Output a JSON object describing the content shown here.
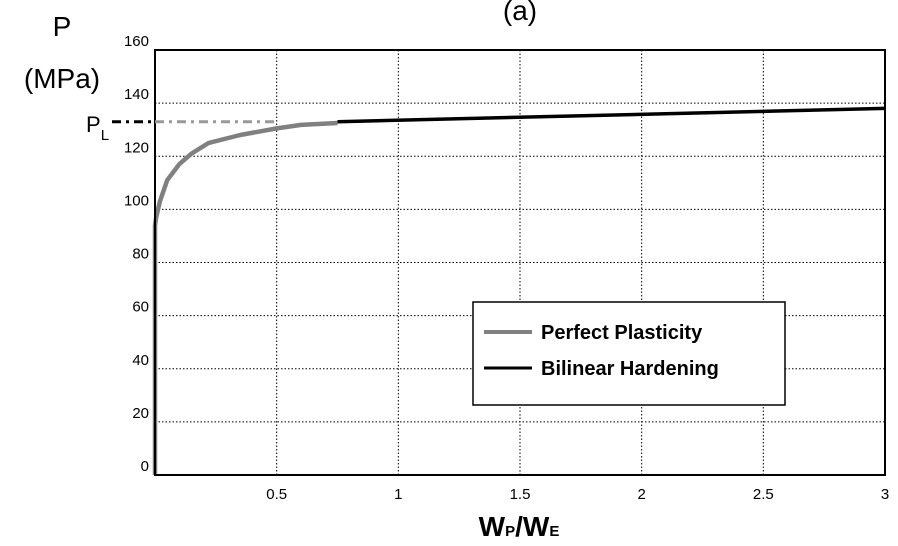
{
  "chart_data": {
    "type": "line",
    "title": "(a)",
    "ylabel_main": "P",
    "ylabel_unit": "(MPa)",
    "xlabel": {
      "w1": "W",
      "s1": "P",
      "slash": "/",
      "w2": "W",
      "s2": "E"
    },
    "annotation": {
      "main": "P",
      "sub": "L",
      "value": 133
    },
    "xlim": [
      0,
      3
    ],
    "ylim": [
      0,
      160
    ],
    "xticks": [
      0.5,
      1,
      1.5,
      2,
      2.5,
      3
    ],
    "xtick_labels": [
      "0.5",
      "1",
      "1.5",
      "2",
      "2.5",
      "3"
    ],
    "yticks": [
      0,
      20,
      40,
      60,
      80,
      100,
      120,
      140,
      160
    ],
    "ytick_labels": [
      "0",
      "20",
      "40",
      "60",
      "80",
      "100",
      "120",
      "140",
      "160"
    ],
    "grid": true,
    "legend_position": "lower-right",
    "series": [
      {
        "name": "Perfect Plasticity",
        "color": "#808080",
        "x": [
          0,
          0,
          0.005,
          0.02,
          0.05,
          0.1,
          0.15,
          0.22,
          0.35,
          0.5,
          0.6,
          0.75
        ],
        "y": [
          0,
          94,
          97,
          103,
          111,
          117,
          121,
          125,
          128,
          130.5,
          131.8,
          132.5
        ]
      },
      {
        "name": "Bilinear Hardening",
        "color": "#000000",
        "x": [
          0.75,
          3
        ],
        "y": [
          133,
          138
        ]
      }
    ]
  }
}
